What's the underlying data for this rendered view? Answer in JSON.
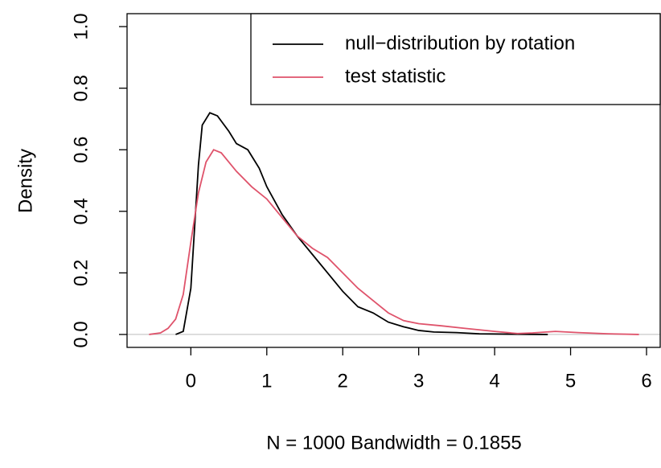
{
  "chart_data": {
    "type": "line",
    "xlabel": "N = 1000   Bandwidth = 0.1855",
    "ylabel": "Density",
    "xlim": [
      -0.84,
      6.18
    ],
    "ylim": [
      -0.042,
      1.042
    ],
    "xticks": [
      0,
      1,
      2,
      3,
      4,
      5,
      6
    ],
    "yticks": [
      {
        "value": 0,
        "label": "0.0"
      },
      {
        "value": 0.2,
        "label": "0.2"
      },
      {
        "value": 0.4,
        "label": "0.4"
      },
      {
        "value": 0.6,
        "label": "0.6"
      },
      {
        "value": 0.8,
        "label": "0.8"
      },
      {
        "value": 1,
        "label": "1.0"
      }
    ],
    "legend": "topright",
    "series": [
      {
        "name": "null−distribution by rotation",
        "color": "#000000",
        "x": [
          -0.2,
          -0.1,
          0,
          0.05,
          0.1,
          0.15,
          0.25,
          0.35,
          0.5,
          0.6,
          0.75,
          0.9,
          1.0,
          1.2,
          1.4,
          1.6,
          1.8,
          2.0,
          2.2,
          2.4,
          2.6,
          2.8,
          3.0,
          3.2,
          3.5,
          3.8,
          4.2,
          4.7
        ],
        "values": [
          0,
          0.01,
          0.15,
          0.35,
          0.55,
          0.68,
          0.72,
          0.71,
          0.66,
          0.62,
          0.6,
          0.54,
          0.48,
          0.39,
          0.32,
          0.26,
          0.2,
          0.14,
          0.09,
          0.07,
          0.04,
          0.025,
          0.013,
          0.008,
          0.006,
          0.002,
          0.001,
          0
        ]
      },
      {
        "name": "test statistic",
        "color": "#df536b",
        "x": [
          -0.55,
          -0.4,
          -0.3,
          -0.2,
          -0.1,
          0,
          0.1,
          0.2,
          0.3,
          0.4,
          0.6,
          0.8,
          1.0,
          1.2,
          1.4,
          1.6,
          1.8,
          2.0,
          2.2,
          2.4,
          2.6,
          2.8,
          3.0,
          3.3,
          3.6,
          4.0,
          4.3,
          4.5,
          4.8,
          5.1,
          5.5,
          5.9
        ],
        "values": [
          0,
          0.005,
          0.02,
          0.05,
          0.13,
          0.3,
          0.46,
          0.56,
          0.6,
          0.59,
          0.53,
          0.48,
          0.44,
          0.38,
          0.32,
          0.28,
          0.25,
          0.2,
          0.15,
          0.11,
          0.07,
          0.045,
          0.035,
          0.028,
          0.02,
          0.01,
          0.003,
          0.005,
          0.01,
          0.006,
          0.002,
          0
        ]
      }
    ]
  }
}
